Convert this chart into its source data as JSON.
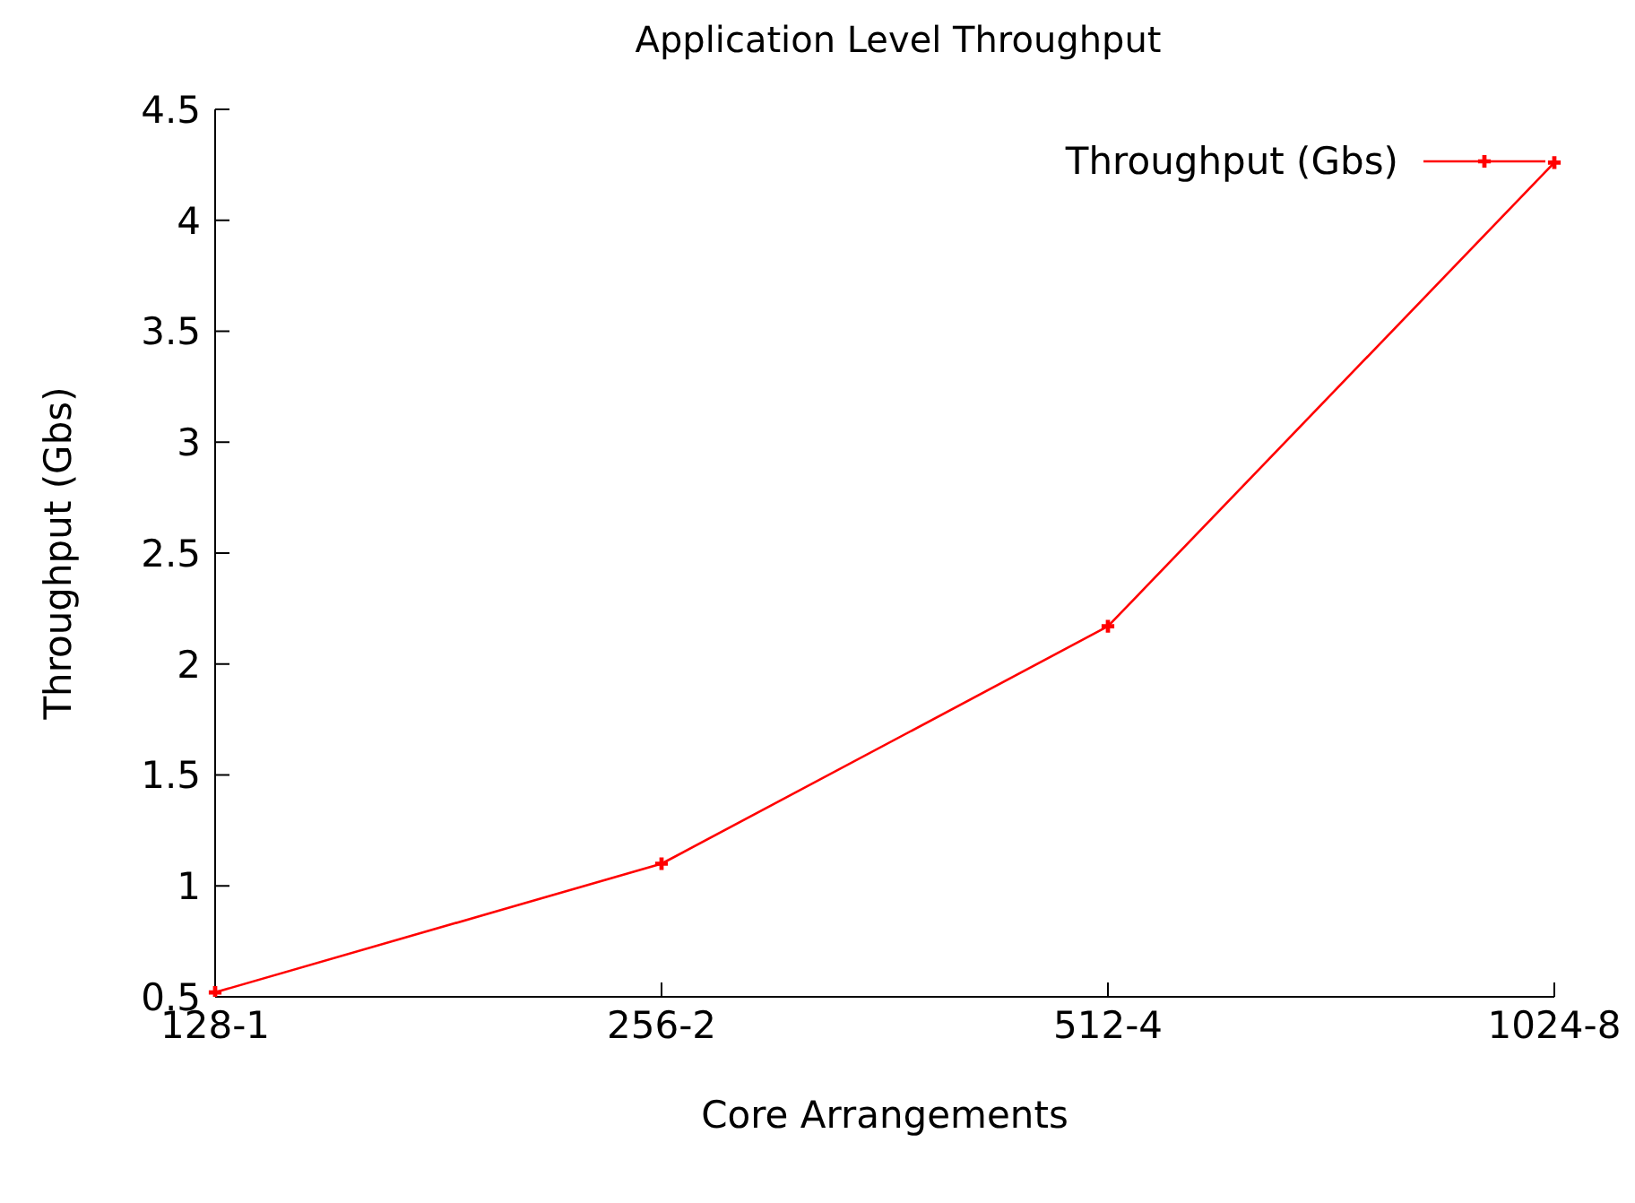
{
  "chart_data": {
    "type": "line",
    "title": "Application Level Throughput",
    "xlabel": "Core Arrangements",
    "ylabel": "Throughput (Gbs)",
    "categories": [
      "128-1",
      "256-2",
      "512-4",
      "1024-8"
    ],
    "series": [
      {
        "name": "Throughput (Gbs)",
        "color": "#ff0000",
        "values": [
          0.52,
          1.1,
          2.17,
          4.26
        ]
      }
    ],
    "ylim": [
      0.5,
      4.5
    ],
    "yticks": [
      0.5,
      1,
      1.5,
      2,
      2.5,
      3,
      3.5,
      4,
      4.5
    ],
    "legend": "top right",
    "marker": "cross",
    "line_style": "solid",
    "grid": false
  }
}
